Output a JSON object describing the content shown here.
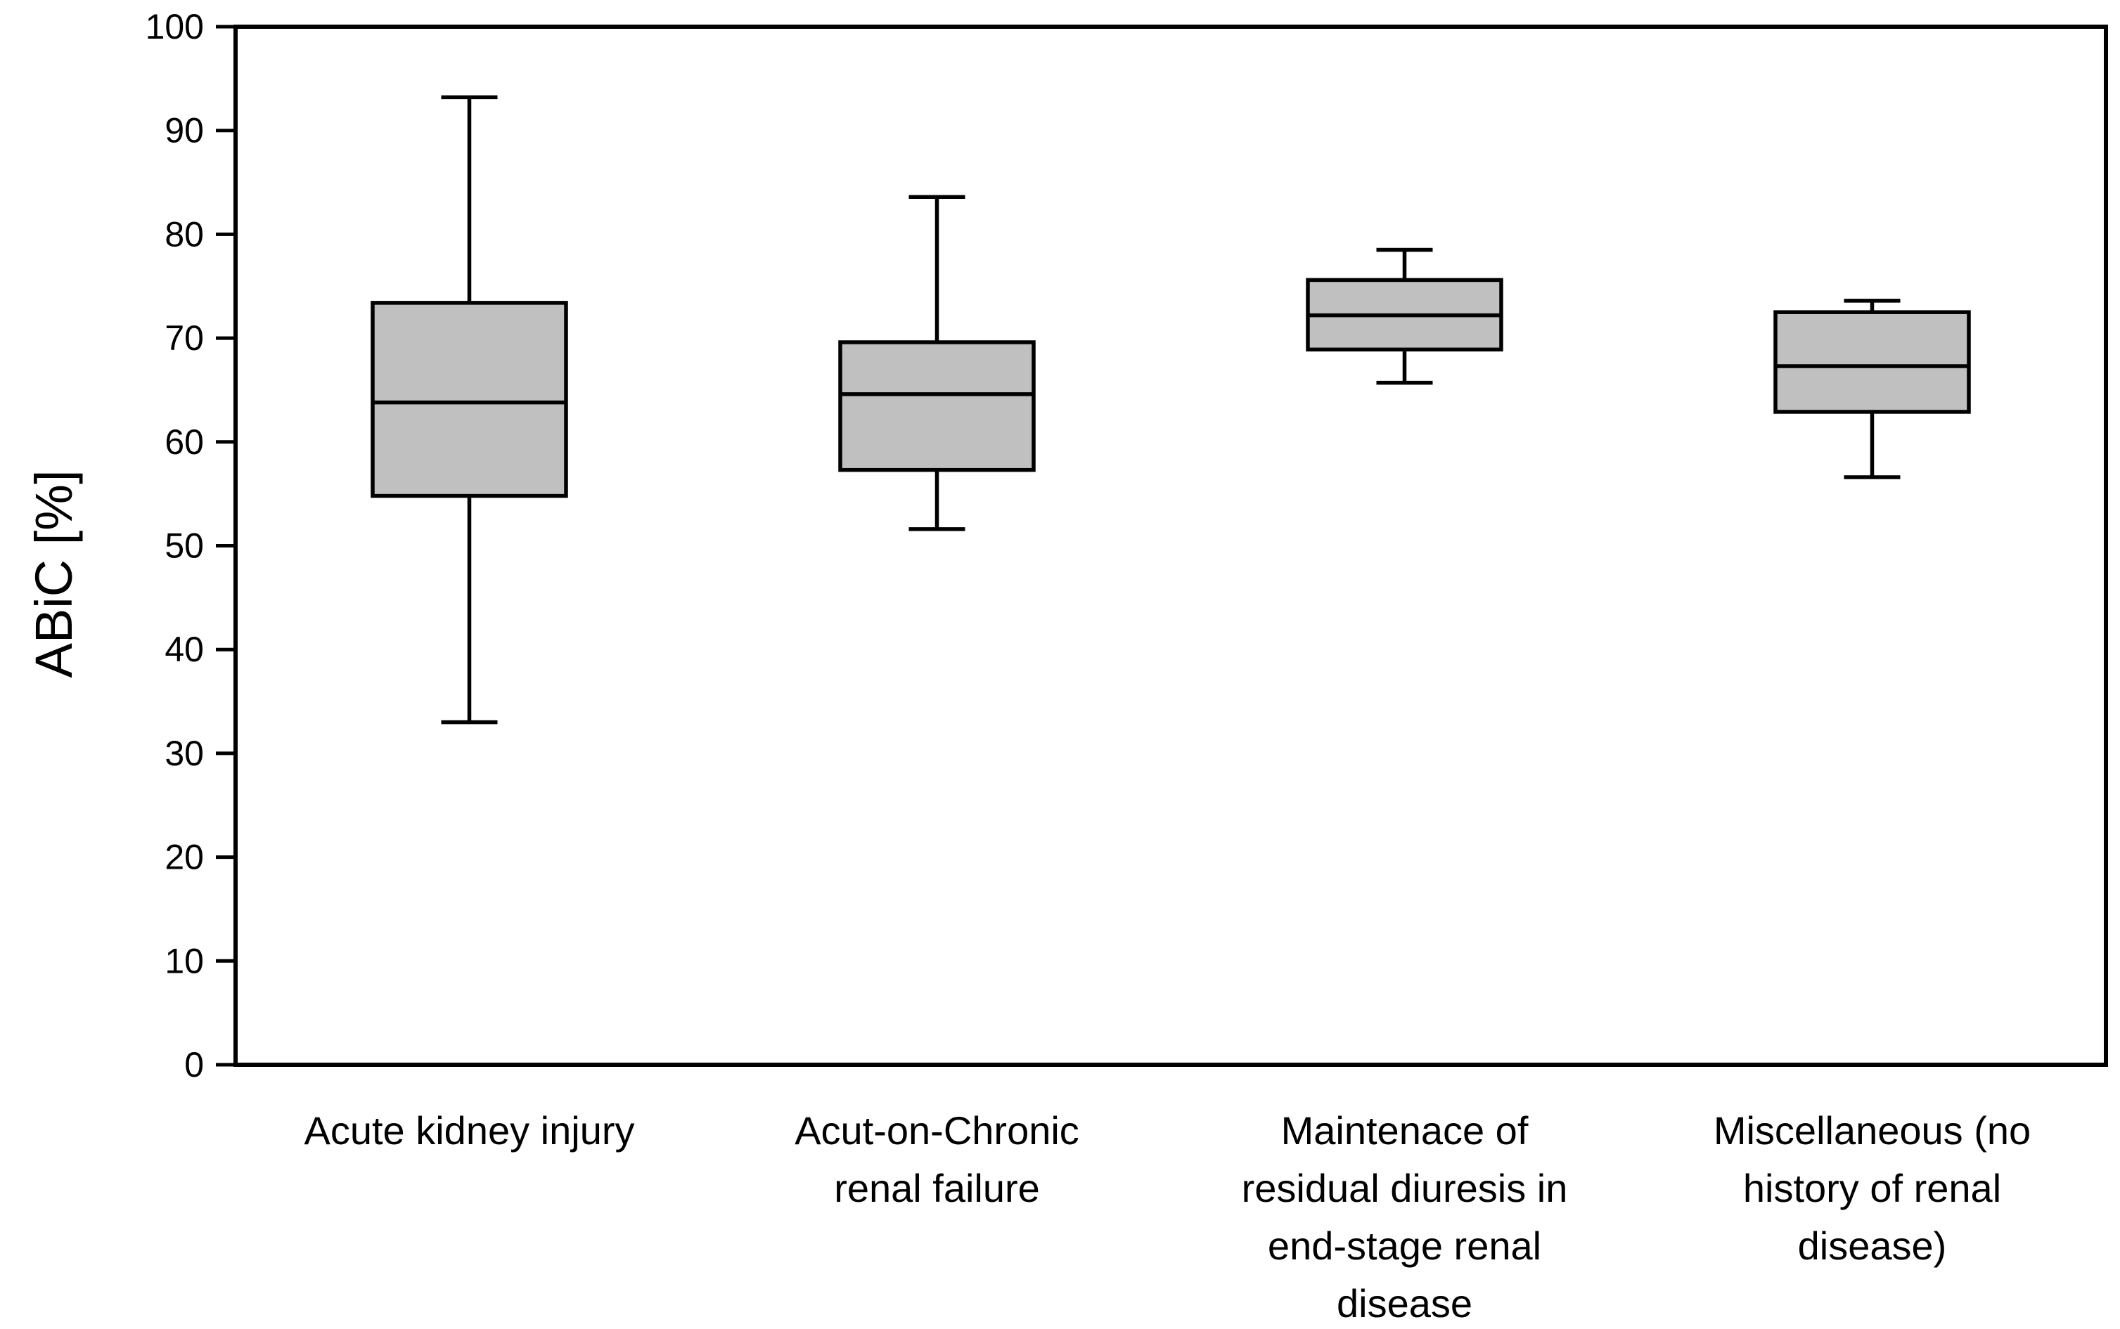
{
  "chart_data": {
    "type": "box",
    "ylabel": "ABiC [%]",
    "xlabel": "",
    "ylim": [
      0,
      100
    ],
    "yticks": [
      0,
      10,
      20,
      30,
      40,
      50,
      60,
      70,
      80,
      90,
      100
    ],
    "grid": false,
    "categories": [
      "Acute kidney injury",
      "Acut-on-Chronic renal failure",
      "Maintenace of residual diuresis in end-stage renal disease",
      "Miscellaneous (no history of renal disease)"
    ],
    "category_label_lines": [
      [
        "Acute kidney injury"
      ],
      [
        "Acut-on-Chronic",
        "renal failure"
      ],
      [
        "Maintenace of",
        "residual diuresis in",
        "end-stage renal",
        "disease"
      ],
      [
        "Miscellaneous (no",
        "history of renal",
        "disease)"
      ]
    ],
    "boxes": [
      {
        "min": 33.0,
        "q1": 54.8,
        "median": 63.8,
        "q3": 73.4,
        "max": 93.2
      },
      {
        "min": 51.6,
        "q1": 57.3,
        "median": 64.6,
        "q3": 69.6,
        "max": 83.6
      },
      {
        "min": 65.7,
        "q1": 68.9,
        "median": 72.2,
        "q3": 75.6,
        "max": 78.5
      },
      {
        "min": 56.6,
        "q1": 62.9,
        "median": 67.3,
        "q3": 72.5,
        "max": 73.6
      }
    ],
    "colors": {
      "box_fill": "#c0c0c0",
      "line": "#000000"
    }
  }
}
